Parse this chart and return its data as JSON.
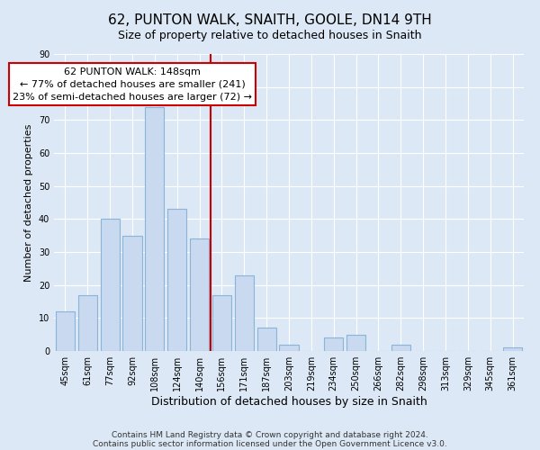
{
  "title": "62, PUNTON WALK, SNAITH, GOOLE, DN14 9TH",
  "subtitle": "Size of property relative to detached houses in Snaith",
  "xlabel": "Distribution of detached houses by size in Snaith",
  "ylabel": "Number of detached properties",
  "bar_labels": [
    "45sqm",
    "61sqm",
    "77sqm",
    "92sqm",
    "108sqm",
    "124sqm",
    "140sqm",
    "156sqm",
    "171sqm",
    "187sqm",
    "203sqm",
    "219sqm",
    "234sqm",
    "250sqm",
    "266sqm",
    "282sqm",
    "298sqm",
    "313sqm",
    "329sqm",
    "345sqm",
    "361sqm"
  ],
  "bar_values": [
    12,
    17,
    40,
    35,
    74,
    43,
    34,
    17,
    23,
    7,
    2,
    0,
    4,
    5,
    0,
    2,
    0,
    0,
    0,
    0,
    1
  ],
  "bar_color": "#c8d9f0",
  "bar_edge_color": "#8ab4d8",
  "vline_color": "#cc0000",
  "annotation_line1": "62 PUNTON WALK: 148sqm",
  "annotation_line2": "← 77% of detached houses are smaller (241)",
  "annotation_line3": "23% of semi-detached houses are larger (72) →",
  "annotation_box_facecolor": "#ffffff",
  "annotation_box_edgecolor": "#cc0000",
  "ylim": [
    0,
    90
  ],
  "yticks": [
    0,
    10,
    20,
    30,
    40,
    50,
    60,
    70,
    80,
    90
  ],
  "footer_line1": "Contains HM Land Registry data © Crown copyright and database right 2024.",
  "footer_line2": "Contains public sector information licensed under the Open Government Licence v3.0.",
  "bg_color": "#dce8f5",
  "plot_bg_color": "#dce8f5",
  "grid_color": "#ffffff",
  "title_fontsize": 11,
  "subtitle_fontsize": 9,
  "xlabel_fontsize": 9,
  "ylabel_fontsize": 8,
  "tick_fontsize": 7,
  "annotation_fontsize": 8,
  "footer_fontsize": 6.5
}
